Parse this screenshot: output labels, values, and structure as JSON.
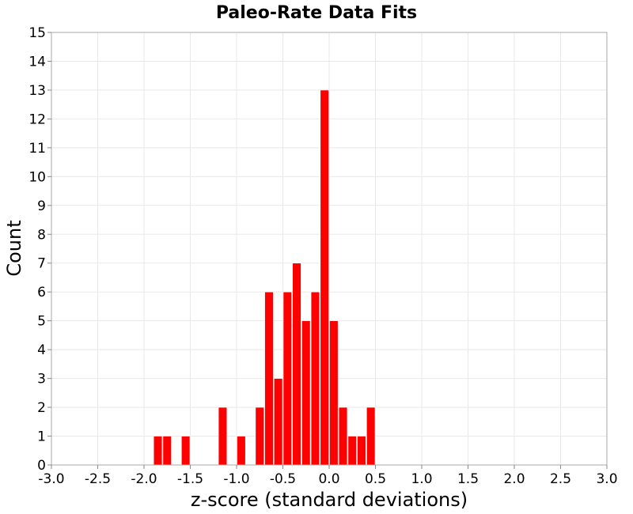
{
  "chart_data": {
    "type": "bar",
    "title": "Paleo-Rate Data Fits",
    "xlabel": "z-score (standard deviations)",
    "ylabel": "Count",
    "xlim": [
      -3.0,
      3.0
    ],
    "ylim": [
      0,
      15
    ],
    "bin_width": 0.1,
    "grid": true,
    "legend": "none",
    "bar_color": "#ff0000",
    "x_ticks": [
      "-3.0",
      "-2.5",
      "-2.0",
      "-1.5",
      "-1.0",
      "-0.5",
      "0.0",
      "0.5",
      "1.0",
      "1.5",
      "2.0",
      "2.5",
      "3.0"
    ],
    "y_ticks": [
      "0",
      "1",
      "2",
      "3",
      "4",
      "5",
      "6",
      "7",
      "8",
      "9",
      "10",
      "11",
      "12",
      "13",
      "14",
      "15"
    ],
    "bins": [
      {
        "x": -1.85,
        "count": 1
      },
      {
        "x": -1.75,
        "count": 1
      },
      {
        "x": -1.55,
        "count": 1
      },
      {
        "x": -1.15,
        "count": 2
      },
      {
        "x": -0.95,
        "count": 1
      },
      {
        "x": -0.75,
        "count": 2
      },
      {
        "x": -0.65,
        "count": 6
      },
      {
        "x": -0.55,
        "count": 3
      },
      {
        "x": -0.45,
        "count": 6
      },
      {
        "x": -0.35,
        "count": 7
      },
      {
        "x": -0.25,
        "count": 5
      },
      {
        "x": -0.15,
        "count": 6
      },
      {
        "x": -0.05,
        "count": 13
      },
      {
        "x": 0.05,
        "count": 5
      },
      {
        "x": 0.15,
        "count": 2
      },
      {
        "x": 0.25,
        "count": 1
      },
      {
        "x": 0.35,
        "count": 1
      },
      {
        "x": 0.45,
        "count": 2
      }
    ]
  }
}
